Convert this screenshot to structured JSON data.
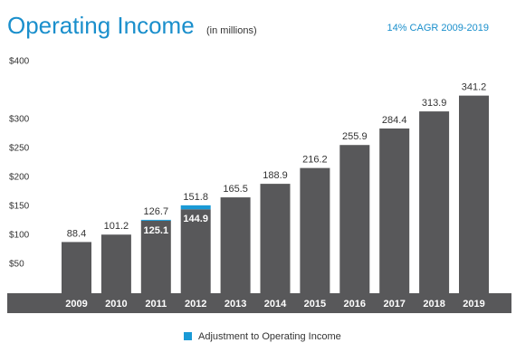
{
  "chart_data": {
    "type": "stacked_bar",
    "title": "Operating Income",
    "subtitle": "(in millions)",
    "annotation": "14% CAGR 2009-2019",
    "categories": [
      "2009",
      "2010",
      "2011",
      "2012",
      "2013",
      "2014",
      "2015",
      "2016",
      "2017",
      "2018",
      "2019"
    ],
    "series": [
      {
        "color": "#58585a",
        "values": [
          88.4,
          101.2,
          125.1,
          144.9,
          165.5,
          188.9,
          216.2,
          255.9,
          284.4,
          313.9,
          341.2
        ]
      },
      {
        "name": "Adjustment to Operating Income",
        "color": "#1a9ad6",
        "values": [
          null,
          null,
          1.6,
          6.9,
          null,
          null,
          null,
          null,
          null,
          null,
          null
        ]
      }
    ],
    "totals": [
      null,
      null,
      126.7,
      151.8,
      null,
      null,
      null,
      null,
      null,
      null,
      null
    ],
    "ylim": [
      0,
      400
    ],
    "yticks": [
      {
        "value": 50,
        "label": "$50"
      },
      {
        "value": 100,
        "label": "$100"
      },
      {
        "value": 150,
        "label": "$150"
      },
      {
        "value": 200,
        "label": "$200"
      },
      {
        "value": 250,
        "label": "$250"
      },
      {
        "value": 300,
        "label": "$300"
      },
      {
        "value": 400,
        "label": "$400"
      }
    ],
    "legend": "bottom"
  }
}
